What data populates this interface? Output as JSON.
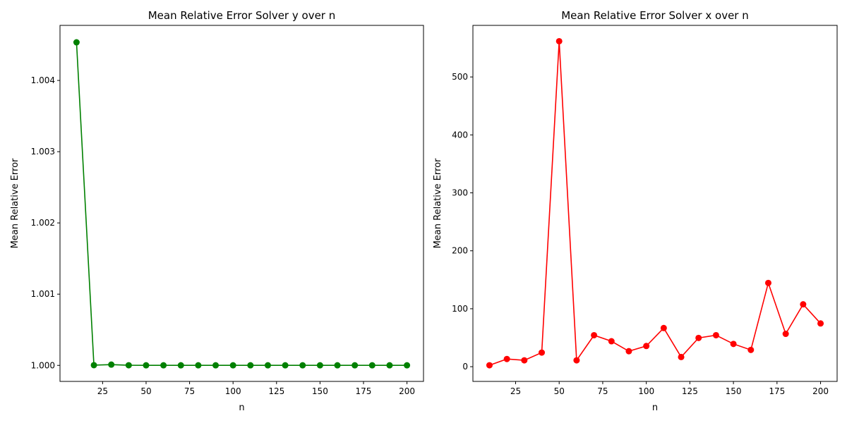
{
  "chart_data": [
    {
      "type": "line",
      "title": "Mean Relative Error Solver y over n",
      "xlabel": "n",
      "ylabel": "Mean Relative Error",
      "xlim": [
        0.5,
        209.5
      ],
      "ylim": [
        0.999775,
        1.004773
      ],
      "xticks": [
        25,
        50,
        75,
        100,
        125,
        150,
        175,
        200
      ],
      "yticks": [
        1.0,
        1.001,
        1.002,
        1.003,
        1.004
      ],
      "ytick_labels": [
        "1.000",
        "1.001",
        "1.002",
        "1.003",
        "1.004"
      ],
      "color": "#008000",
      "grid": false,
      "x": [
        10,
        20,
        30,
        40,
        50,
        60,
        70,
        80,
        90,
        100,
        110,
        120,
        130,
        140,
        150,
        160,
        170,
        180,
        190,
        200
      ],
      "y": [
        1.004535,
        1.000003,
        1.000011,
        1.000002,
        1.000001,
        1.000001,
        1.000001,
        1.000001,
        1.000001,
        1.000001,
        1.000001,
        1.000001,
        1.000001,
        1.000001,
        1.000001,
        1.000001,
        1.000001,
        1.000001,
        1.000001,
        1.000001
      ]
    },
    {
      "type": "line",
      "title": "Mean Relative Error Solver x over n",
      "xlabel": "n",
      "ylabel": "Mean Relative Error",
      "xlim": [
        0.5,
        209.5
      ],
      "ylim": [
        -25.4,
        589.0
      ],
      "xticks": [
        25,
        50,
        75,
        100,
        125,
        150,
        175,
        200
      ],
      "yticks": [
        0,
        100,
        200,
        300,
        400,
        500
      ],
      "ytick_labels": [
        "0",
        "100",
        "200",
        "300",
        "400",
        "500"
      ],
      "color": "#ff0000",
      "grid": false,
      "x": [
        10,
        20,
        30,
        40,
        50,
        60,
        70,
        80,
        90,
        100,
        110,
        120,
        130,
        140,
        150,
        160,
        170,
        180,
        190,
        200
      ],
      "y": [
        2.5,
        13.3,
        11.0,
        24.4,
        561.7,
        11.0,
        54.3,
        43.9,
        26.7,
        35.7,
        66.7,
        16.7,
        49.6,
        54.3,
        39.3,
        28.9,
        144.5,
        56.7,
        107.6,
        74.6
      ]
    }
  ]
}
